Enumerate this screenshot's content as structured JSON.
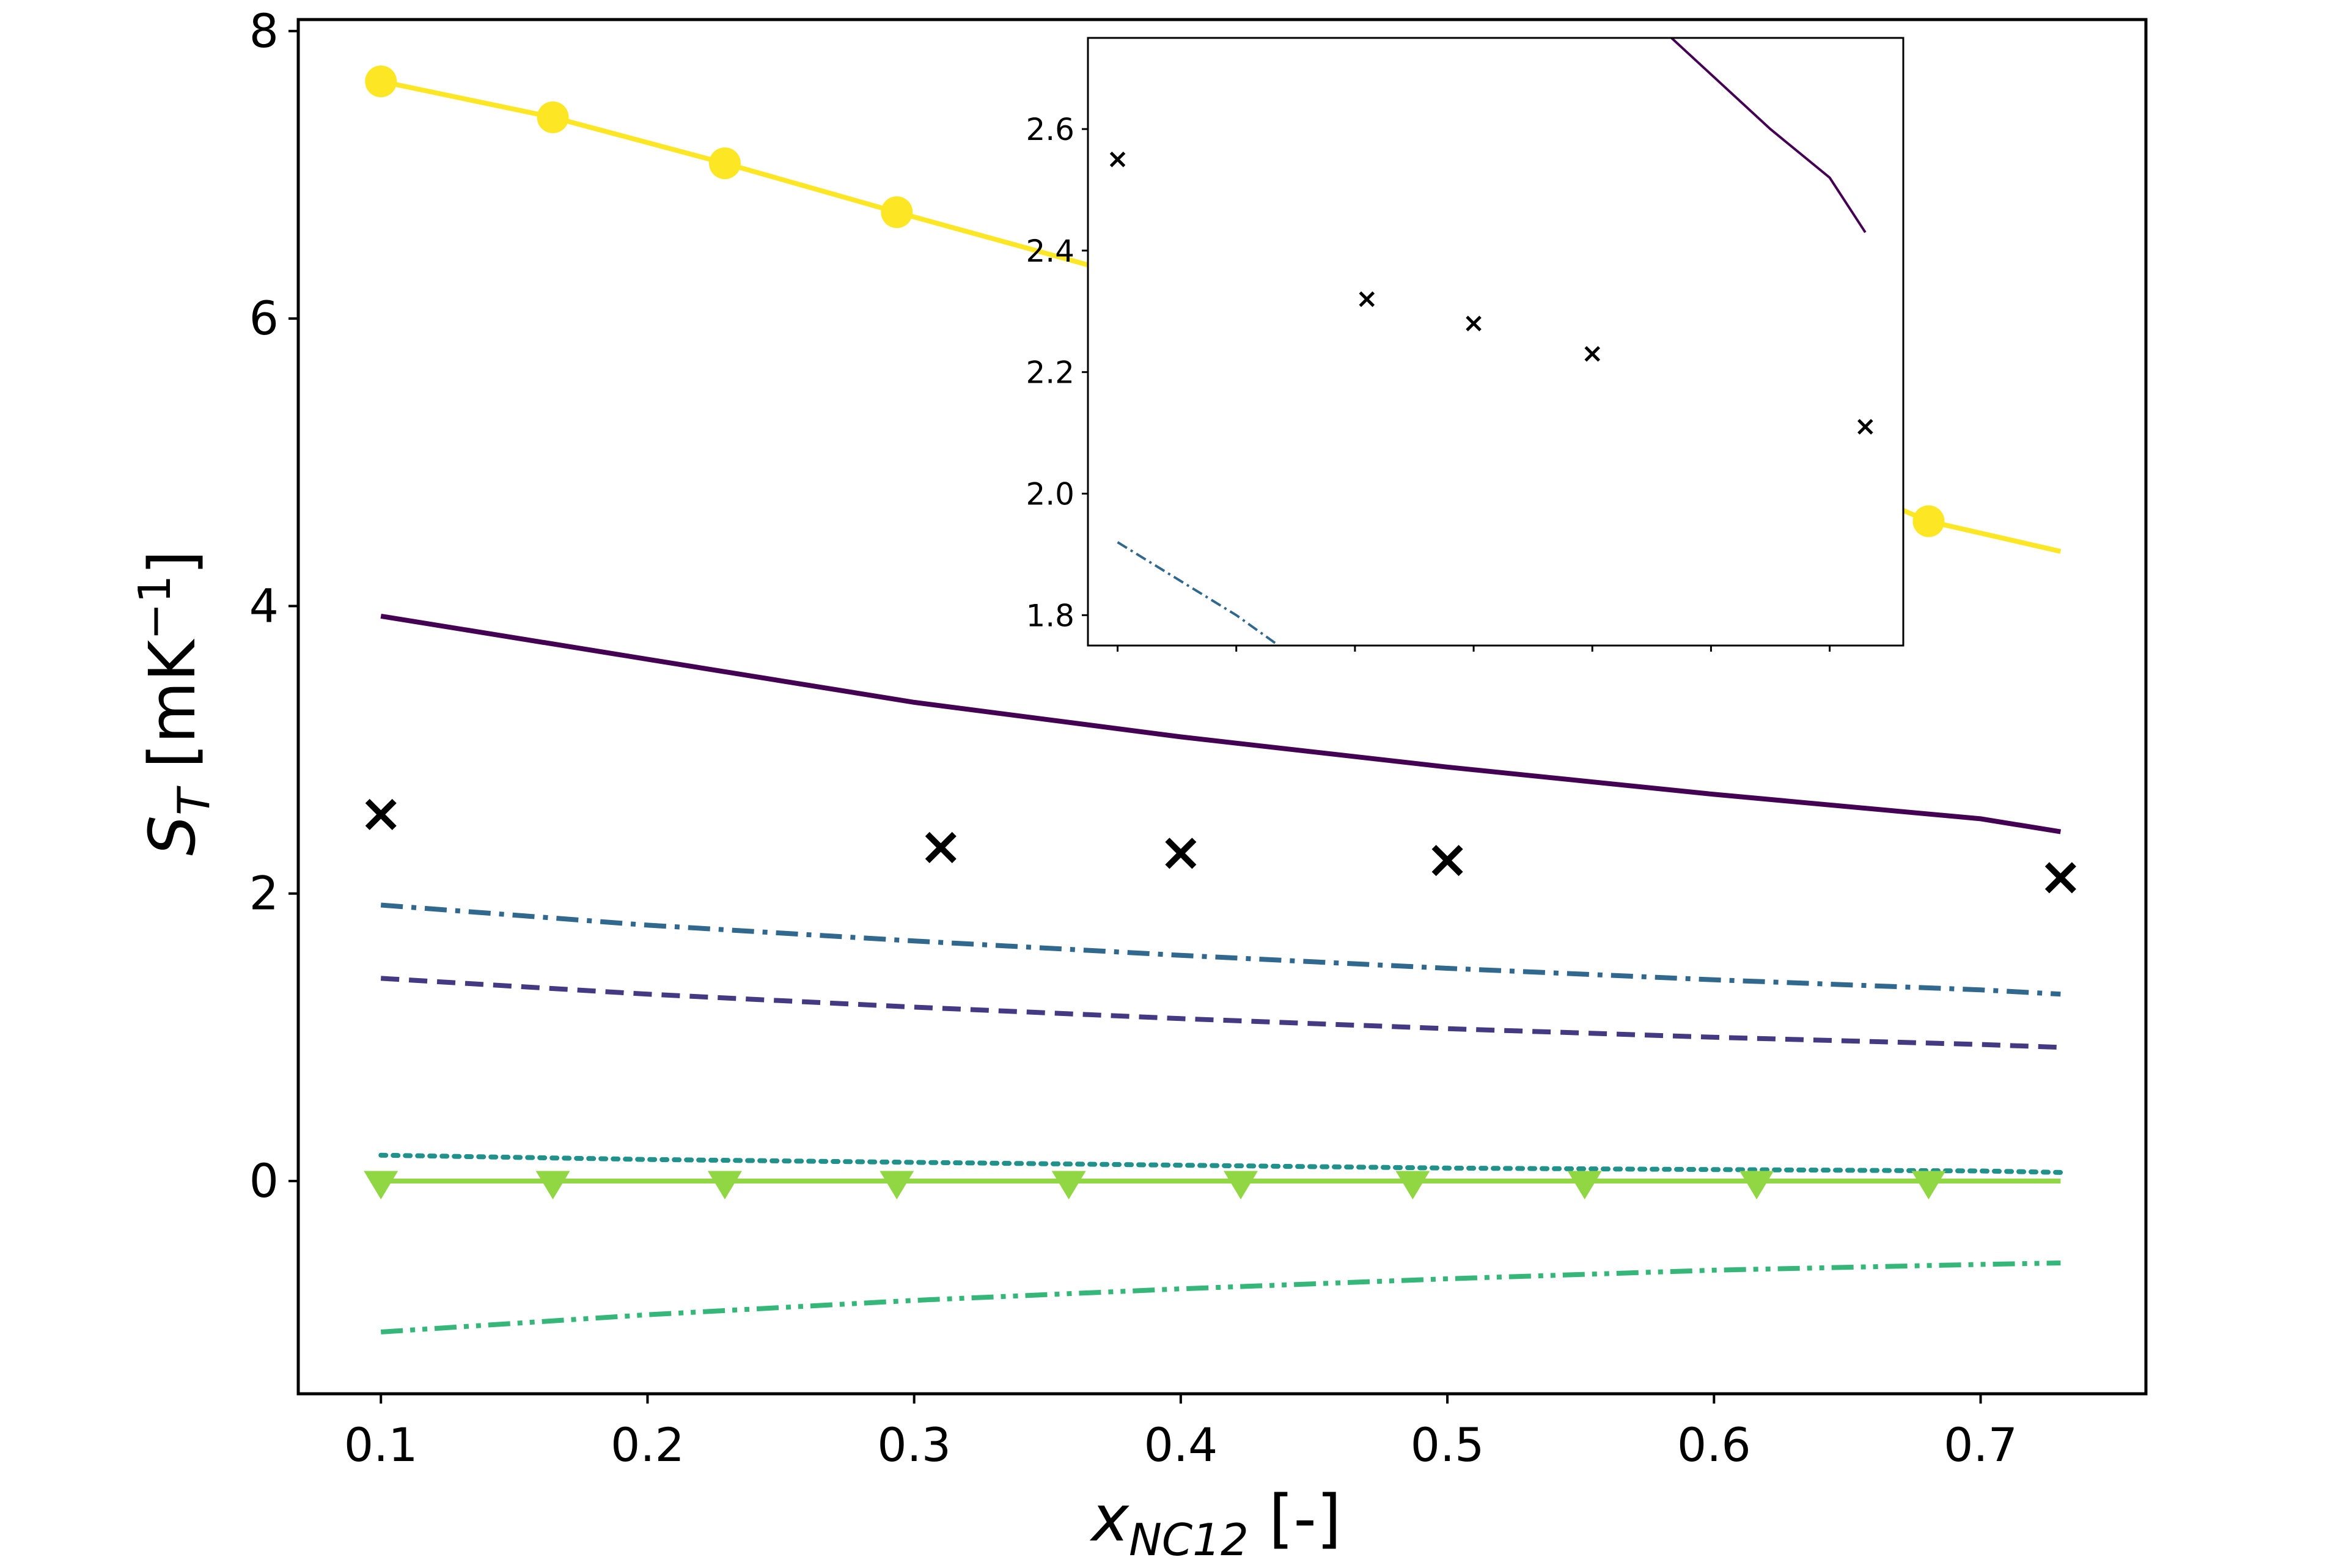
{
  "chart_data": [
    {
      "id": "main",
      "type": "line",
      "xlabel": {
        "main": "x",
        "sub": "NC12",
        "rest": " [-]"
      },
      "ylabel": {
        "main": "S",
        "sub": "T",
        "rest": " [mK",
        "sup": "−1",
        "close": "]"
      },
      "xlim": [
        0.069,
        0.762
      ],
      "ylim": [
        -1.48,
        8.08
      ],
      "xticks": [
        0.1,
        0.2,
        0.3,
        0.4,
        0.5,
        0.6,
        0.7
      ],
      "xtick_labels": [
        "0.1",
        "0.2",
        "0.3",
        "0.4",
        "0.5",
        "0.6",
        "0.7"
      ],
      "yticks": [
        0,
        2,
        4,
        6,
        8
      ],
      "ytick_labels": [
        "0",
        "2",
        "4",
        "6",
        "8"
      ],
      "grid": false,
      "series": [
        {
          "key": "yellow-circles",
          "color": "#fde725",
          "style": "solid",
          "marker": "circle",
          "x": [
            0.1,
            0.1645,
            0.229,
            0.2935,
            0.358,
            0.4225,
            0.487,
            0.5515,
            0.616,
            0.6805,
            0.73
          ],
          "y": [
            7.65,
            7.4,
            7.08,
            6.74,
            6.41,
            6.08,
            5.75,
            5.42,
            5.1,
            4.59,
            4.38
          ],
          "marker_x": [
            0.1,
            0.1645,
            0.229,
            0.2935,
            0.6805
          ],
          "marker_y": [
            7.65,
            7.4,
            7.08,
            6.74,
            4.59
          ]
        },
        {
          "key": "purple-solid",
          "color": "#440154",
          "style": "solid",
          "x": [
            0.1,
            0.2,
            0.3,
            0.4,
            0.5,
            0.6,
            0.7,
            0.73
          ],
          "y": [
            3.93,
            3.63,
            3.33,
            3.09,
            2.88,
            2.69,
            2.52,
            2.43
          ]
        },
        {
          "key": "blue-dashdot",
          "color": "#31688e",
          "style": "dashdot",
          "x": [
            0.1,
            0.2,
            0.3,
            0.4,
            0.5,
            0.6,
            0.7,
            0.73
          ],
          "y": [
            1.92,
            1.78,
            1.67,
            1.57,
            1.48,
            1.4,
            1.33,
            1.3
          ]
        },
        {
          "key": "indigo-dashed",
          "color": "#443983",
          "style": "dashed",
          "x": [
            0.1,
            0.2,
            0.3,
            0.4,
            0.5,
            0.6,
            0.7,
            0.73
          ],
          "y": [
            1.41,
            1.3,
            1.21,
            1.13,
            1.06,
            1.0,
            0.95,
            0.93
          ]
        },
        {
          "key": "teal-dotted",
          "color": "#21918c",
          "style": "dotted",
          "x": [
            0.1,
            0.2,
            0.3,
            0.4,
            0.5,
            0.6,
            0.7,
            0.73
          ],
          "y": [
            0.18,
            0.15,
            0.13,
            0.11,
            0.09,
            0.08,
            0.07,
            0.06
          ]
        },
        {
          "key": "green-triangles",
          "color": "#90d743",
          "style": "solid",
          "marker": "triangle-down",
          "x": [
            0.1,
            0.1645,
            0.229,
            0.2935,
            0.358,
            0.4225,
            0.487,
            0.5515,
            0.616,
            0.6805,
            0.73
          ],
          "y": [
            0,
            0,
            0,
            0,
            0,
            0,
            0,
            0,
            0,
            0,
            0
          ],
          "marker_x": [
            0.1,
            0.1645,
            0.229,
            0.2935,
            0.358,
            0.4225,
            0.487,
            0.5515,
            0.616,
            0.6805
          ],
          "marker_y": [
            0,
            0,
            0,
            0,
            0,
            0,
            0,
            0,
            0,
            0
          ]
        },
        {
          "key": "green-dashdotdot",
          "color": "#35b779",
          "style": "dashdotdot",
          "x": [
            0.1,
            0.2,
            0.3,
            0.4,
            0.5,
            0.6,
            0.7,
            0.73
          ],
          "y": [
            -1.05,
            -0.93,
            -0.83,
            -0.75,
            -0.68,
            -0.62,
            -0.58,
            -0.57
          ]
        },
        {
          "key": "experiment-crosses",
          "color": "#000000",
          "style": "none",
          "marker": "x",
          "x": [
            0.1,
            0.31,
            0.4,
            0.5,
            0.73
          ],
          "y": [
            2.55,
            2.32,
            2.28,
            2.23,
            2.11
          ]
        }
      ]
    },
    {
      "id": "inset",
      "type": "line",
      "xlim": [
        0.075,
        0.762
      ],
      "ylim": [
        1.75,
        2.75
      ],
      "xticks": [
        0.1,
        0.2,
        0.3,
        0.4,
        0.5,
        0.6,
        0.7
      ],
      "yticks": [
        1.8,
        2.0,
        2.2,
        2.4,
        2.6
      ],
      "ytick_labels": [
        "1.8",
        "2.0",
        "2.2",
        "2.4",
        "2.6"
      ],
      "grid": false,
      "series": [
        {
          "key": "inset-purple",
          "color": "#440154",
          "style": "solid",
          "x": [
            0.5,
            0.55,
            0.6,
            0.65,
            0.7,
            0.73
          ],
          "y": [
            2.88,
            2.78,
            2.69,
            2.6,
            2.52,
            2.43
          ]
        },
        {
          "key": "inset-blue",
          "color": "#31688e",
          "style": "dashdot",
          "x": [
            0.1,
            0.15,
            0.2,
            0.25,
            0.3
          ],
          "y": [
            1.92,
            1.86,
            1.8,
            1.73,
            1.67
          ]
        },
        {
          "key": "inset-crosses",
          "color": "#000000",
          "style": "none",
          "marker": "x",
          "x": [
            0.1,
            0.31,
            0.4,
            0.5,
            0.73
          ],
          "y": [
            2.55,
            2.32,
            2.28,
            2.23,
            2.11
          ]
        }
      ]
    }
  ]
}
